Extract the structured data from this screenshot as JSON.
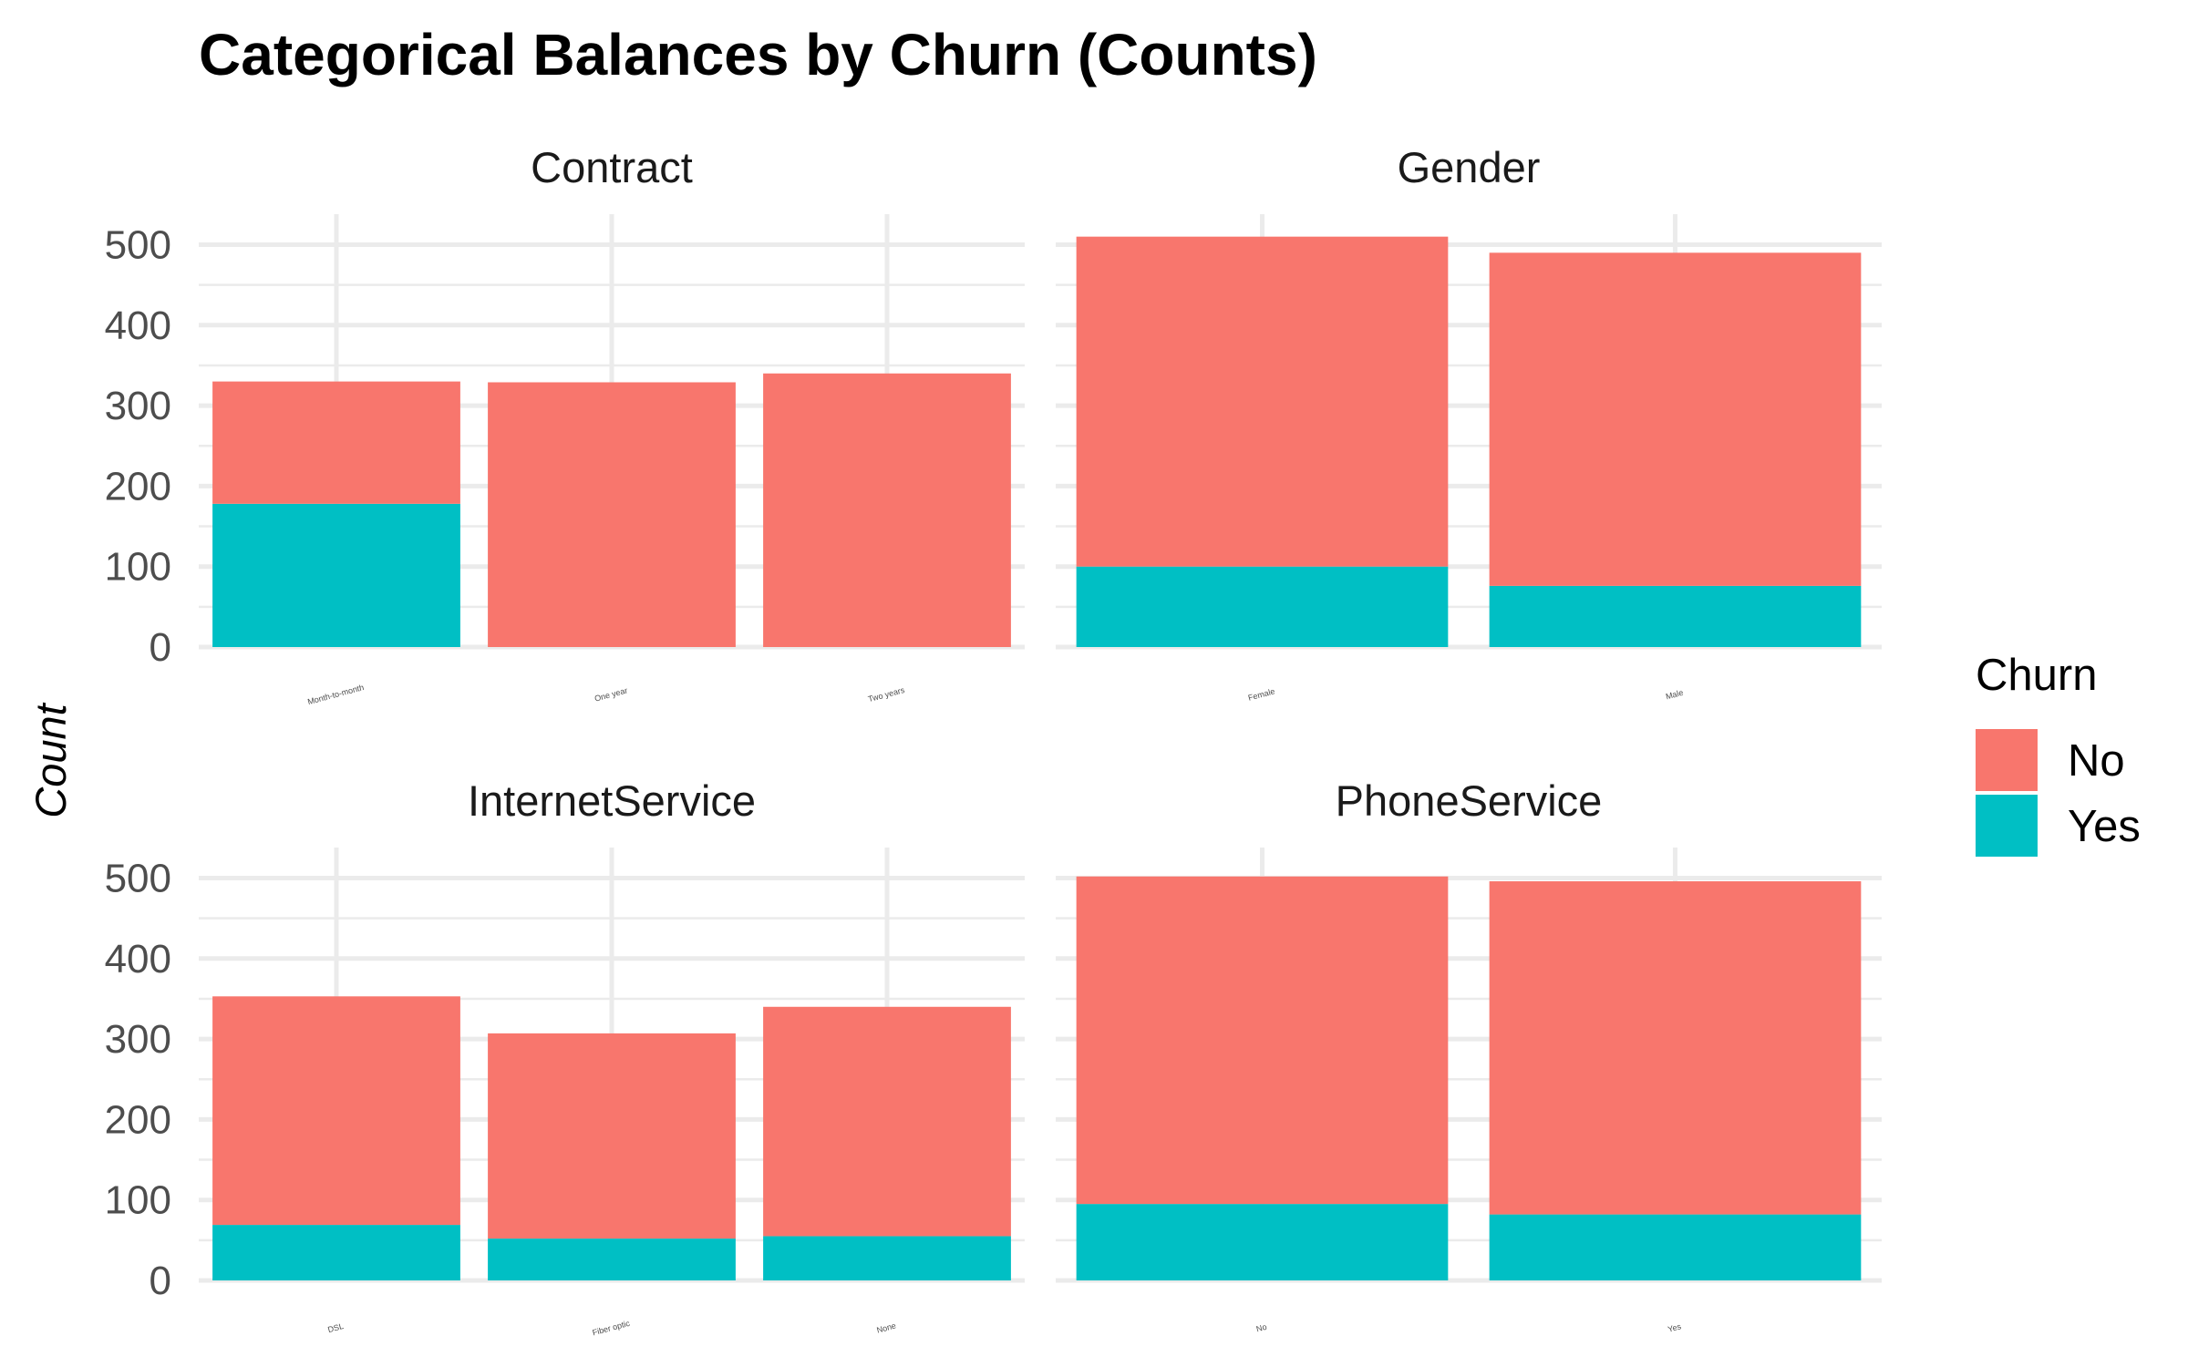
{
  "chart_data": {
    "type": "bar",
    "stacked": true,
    "title": "Categorical Balances by Churn (Counts)",
    "ylabel": "Count",
    "xlabel": "",
    "ylim": [
      0,
      530
    ],
    "yticks": [
      0,
      100,
      200,
      300,
      400,
      500
    ],
    "grid": true,
    "legend": {
      "title": "Churn",
      "position": "right",
      "entries": [
        {
          "label": "No",
          "color": "#F8766D"
        },
        {
          "label": "Yes",
          "color": "#00BFC4"
        }
      ]
    },
    "panels": [
      {
        "name": "Contract",
        "categories": [
          "Month-to-month",
          "One year",
          "Two years"
        ],
        "series": [
          {
            "name": "No",
            "values": [
              152,
              329,
              340
            ]
          },
          {
            "name": "Yes",
            "values": [
              178,
              0,
              0
            ]
          }
        ]
      },
      {
        "name": "Gender",
        "categories": [
          "Female",
          "Male"
        ],
        "series": [
          {
            "name": "No",
            "values": [
              410,
              414
            ]
          },
          {
            "name": "Yes",
            "values": [
              100,
              76
            ]
          }
        ]
      },
      {
        "name": "InternetService",
        "categories": [
          "DSL",
          "Fiber optic",
          "None"
        ],
        "series": [
          {
            "name": "No",
            "values": [
              284,
              255,
              285
            ]
          },
          {
            "name": "Yes",
            "values": [
              69,
              52,
              55
            ]
          }
        ]
      },
      {
        "name": "PhoneService",
        "categories": [
          "No",
          "Yes"
        ],
        "series": [
          {
            "name": "No",
            "values": [
              407,
              414
            ]
          },
          {
            "name": "Yes",
            "values": [
              95,
              82
            ]
          }
        ]
      }
    ]
  }
}
